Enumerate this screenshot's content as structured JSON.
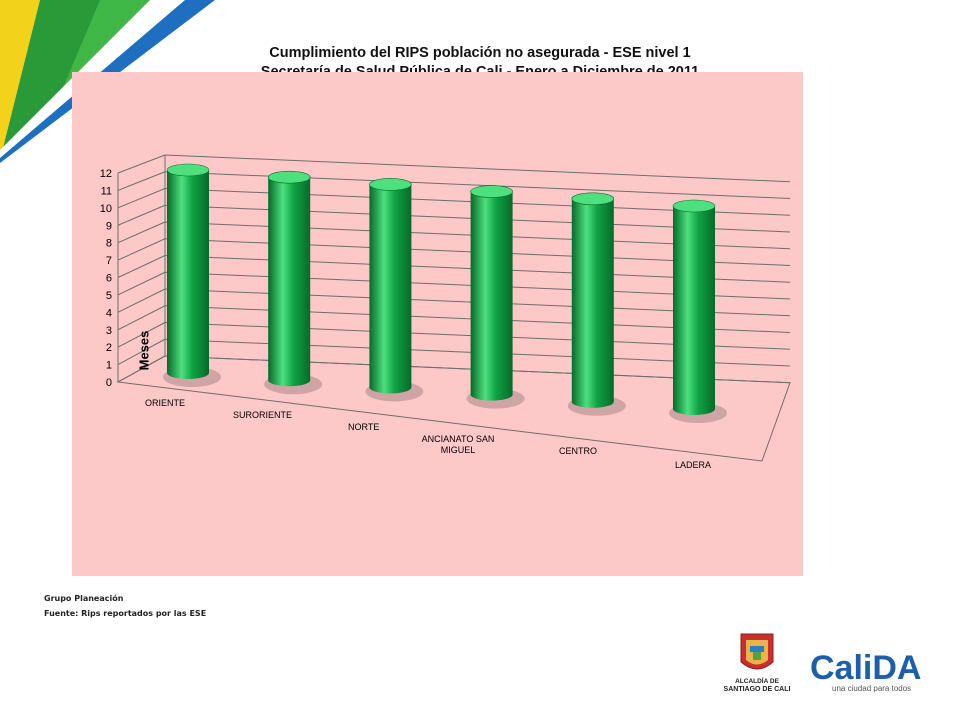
{
  "chart_data": {
    "type": "bar",
    "style": "3d-cylinder",
    "title": "Cumplimiento del RIPS población no asegurada - ESE nivel 1",
    "subtitle": "Secretaría de Salud Pública de Cali - Enero a Diciembre de 2011",
    "xlabel": "",
    "ylabel": "Meses",
    "ylim": [
      0,
      12
    ],
    "yticks": [
      "0",
      "1",
      "2",
      "3",
      "4",
      "5",
      "6",
      "7",
      "8",
      "9",
      "10",
      "11",
      "12"
    ],
    "grid": true,
    "categories": [
      "ORIENTE",
      "SURORIENTE",
      "NORTE",
      "ANCIANATO SAN MIGUEL",
      "CENTRO",
      "LADERA"
    ],
    "values": [
      12,
      12,
      12,
      12,
      12,
      12
    ],
    "colors": {
      "bar": "#0fa345",
      "bar_dark": "#066a28",
      "bar_light": "#4ee07f",
      "background": "#fdc8c8",
      "grid": "#6e6e6e"
    }
  },
  "footer": {
    "line1": "Grupo Planeación",
    "line2": "Fuente: Rips reportados por las ESE"
  },
  "logos": {
    "alcaldia_line1": "ALCALDÍA DE",
    "alcaldia_line2": "SANTIAGO DE CALI",
    "calida_text": "CaliDA",
    "calida_slogan": "una ciudad para todos"
  }
}
